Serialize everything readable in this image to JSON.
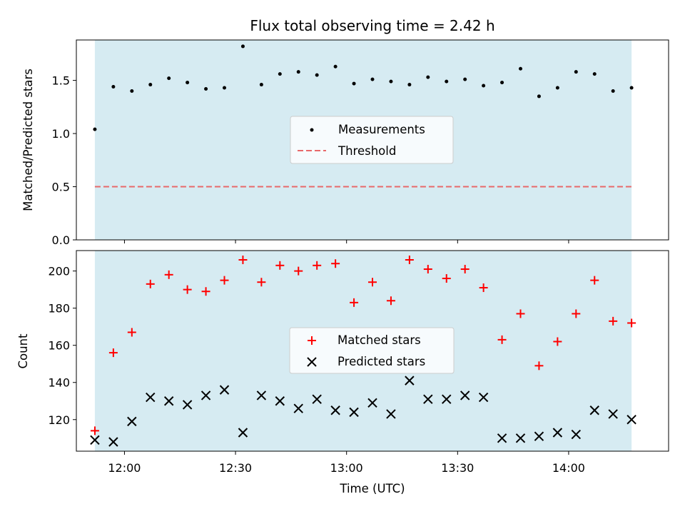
{
  "title": "Flux total observing time = 2.42 h",
  "colors": {
    "background": "#ffffff",
    "span": "#add8e6",
    "measurement": "#000000",
    "threshold": "#e8686a",
    "matched": "#ff0000",
    "predicted": "#000000"
  },
  "chart_data": [
    {
      "type": "scatter",
      "ylabel": "Matched/Predicted stars",
      "xlim": [
        "11:47",
        "14:27"
      ],
      "ylim": [
        0,
        1.88
      ],
      "yticks": [
        "0.0",
        "0.5",
        "1.0",
        "1.5"
      ],
      "yticks_values": [
        0,
        0.5,
        1.0,
        1.5
      ],
      "shaded_span": [
        "11:52",
        "14:17"
      ],
      "threshold": 0.5,
      "legend": {
        "placement": "center",
        "entries": [
          "Measurements",
          "Threshold"
        ]
      },
      "series": [
        {
          "name": "Measurements",
          "marker": "dot",
          "x": [
            "11:52",
            "11:57",
            "12:02",
            "12:07",
            "12:12",
            "12:17",
            "12:22",
            "12:27",
            "12:32",
            "12:37",
            "12:42",
            "12:47",
            "12:52",
            "12:57",
            "13:02",
            "13:07",
            "13:12",
            "13:17",
            "13:22",
            "13:27",
            "13:32",
            "13:37",
            "13:42",
            "13:47",
            "13:52",
            "13:57",
            "14:02",
            "14:07",
            "14:12",
            "14:17"
          ],
          "y": [
            1.04,
            1.44,
            1.4,
            1.46,
            1.52,
            1.48,
            1.42,
            1.43,
            1.82,
            1.46,
            1.56,
            1.58,
            1.55,
            1.63,
            1.47,
            1.51,
            1.49,
            1.46,
            1.53,
            1.49,
            1.51,
            1.45,
            1.48,
            1.61,
            1.35,
            1.43,
            1.58,
            1.56,
            1.4,
            1.43
          ]
        }
      ]
    },
    {
      "type": "scatter",
      "xlabel": "Time (UTC)",
      "ylabel": "Count",
      "xlim": [
        "11:47",
        "14:27"
      ],
      "ylim": [
        103,
        211
      ],
      "xticks": [
        "12:00",
        "12:30",
        "13:00",
        "13:30",
        "14:00"
      ],
      "yticks": [
        "120",
        "140",
        "160",
        "180",
        "200"
      ],
      "yticks_values": [
        120,
        140,
        160,
        180,
        200
      ],
      "shaded_span": [
        "11:52",
        "14:17"
      ],
      "legend": {
        "placement": "center",
        "entries": [
          "Matched stars",
          "Predicted stars"
        ]
      },
      "series": [
        {
          "name": "Matched stars",
          "marker": "plus",
          "x": [
            "11:52",
            "11:57",
            "12:02",
            "12:07",
            "12:12",
            "12:17",
            "12:22",
            "12:27",
            "12:32",
            "12:37",
            "12:42",
            "12:47",
            "12:52",
            "12:57",
            "13:02",
            "13:07",
            "13:12",
            "13:17",
            "13:22",
            "13:27",
            "13:32",
            "13:37",
            "13:42",
            "13:47",
            "13:52",
            "13:57",
            "14:02",
            "14:07",
            "14:12",
            "14:17"
          ],
          "y": [
            114,
            156,
            167,
            193,
            198,
            190,
            189,
            195,
            206,
            194,
            203,
            200,
            203,
            204,
            183,
            194,
            184,
            206,
            201,
            196,
            201,
            191,
            163,
            177,
            149,
            162,
            177,
            195,
            173,
            172
          ]
        },
        {
          "name": "Predicted stars",
          "marker": "x",
          "x": [
            "11:52",
            "11:57",
            "12:02",
            "12:07",
            "12:12",
            "12:17",
            "12:22",
            "12:27",
            "12:32",
            "12:37",
            "12:42",
            "12:47",
            "12:52",
            "12:57",
            "13:02",
            "13:07",
            "13:12",
            "13:17",
            "13:22",
            "13:27",
            "13:32",
            "13:37",
            "13:42",
            "13:47",
            "13:52",
            "13:57",
            "14:02",
            "14:07",
            "14:12",
            "14:17"
          ],
          "y": [
            109,
            108,
            119,
            132,
            130,
            128,
            133,
            136,
            113,
            133,
            130,
            126,
            131,
            125,
            124,
            129,
            123,
            141,
            131,
            131,
            133,
            132,
            110,
            110,
            111,
            113,
            112,
            125,
            123,
            120
          ]
        }
      ]
    }
  ]
}
